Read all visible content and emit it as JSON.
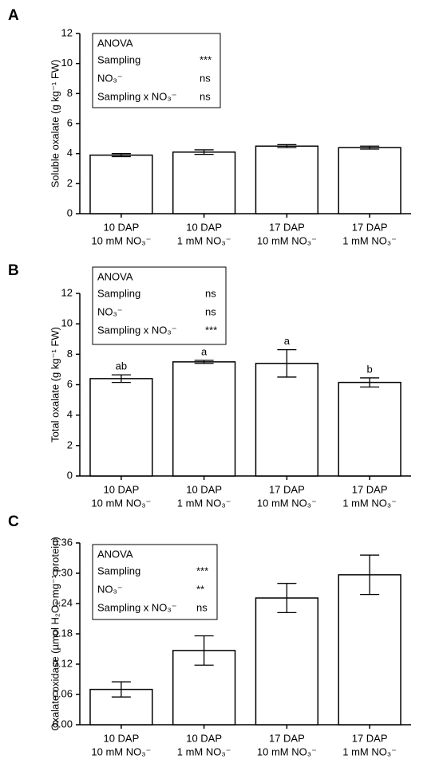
{
  "chart_data": [
    {
      "type": "bar",
      "panel_label": "A",
      "ylabel": "Soluble oxalate (g kg⁻¹ FW)",
      "anova": {
        "title": "ANOVA",
        "rows": [
          [
            "Sampling",
            "***"
          ],
          [
            "NO₃⁻",
            "ns"
          ],
          [
            "Sampling x NO₃⁻",
            "ns"
          ]
        ]
      },
      "categories": [
        [
          "10 DAP",
          "10 mM NO₃⁻"
        ],
        [
          "10 DAP",
          "1 mM NO₃⁻"
        ],
        [
          "17 DAP",
          "10 mM NO₃⁻"
        ],
        [
          "17 DAP",
          "1 mM NO₃⁻"
        ]
      ],
      "values": [
        3.9,
        4.1,
        4.5,
        4.4
      ],
      "errors": [
        0.1,
        0.15,
        0.1,
        0.1
      ],
      "color": "#ffffff",
      "ylim": [
        0,
        12
      ],
      "yticks": [
        0,
        2,
        4,
        6,
        8,
        10,
        12
      ]
    },
    {
      "type": "bar",
      "panel_label": "B",
      "ylabel": "Total oxalate (g kg⁻¹ FW)",
      "anova": {
        "title": "ANOVA",
        "rows": [
          [
            "Sampling",
            "ns"
          ],
          [
            "NO₃⁻",
            "ns"
          ],
          [
            "Sampling x NO₃⁻",
            "***"
          ]
        ]
      },
      "categories": [
        [
          "10 DAP",
          "10 mM NO₃⁻"
        ],
        [
          "10 DAP",
          "1 mM NO₃⁻"
        ],
        [
          "17 DAP",
          "10 mM NO₃⁻"
        ],
        [
          "17 DAP",
          "1 mM NO₃⁻"
        ]
      ],
      "values": [
        6.4,
        7.5,
        7.4,
        6.15
      ],
      "errors": [
        0.25,
        0.1,
        0.9,
        0.3
      ],
      "letters": [
        "ab",
        "a",
        "a",
        "b"
      ],
      "color": "#ffffff",
      "ylim": [
        0,
        12
      ],
      "yticks": [
        0,
        2,
        4,
        6,
        8,
        10,
        12
      ]
    },
    {
      "type": "bar",
      "panel_label": "C",
      "ylabel": "Oxalate oxidase (µmol H₂O₂ mg⁻¹ protein)",
      "anova": {
        "title": "ANOVA",
        "rows": [
          [
            "Sampling",
            "***"
          ],
          [
            "NO₃⁻",
            "**"
          ],
          [
            "Sampling x NO₃⁻",
            "ns"
          ]
        ]
      },
      "categories": [
        [
          "10 DAP",
          "10 mM NO₃⁻"
        ],
        [
          "10 DAP",
          "1 mM NO₃⁻"
        ],
        [
          "17 DAP",
          "10 mM NO₃⁻"
        ],
        [
          "17 DAP",
          "1 mM NO₃⁻"
        ]
      ],
      "values": [
        0.07,
        0.147,
        0.251,
        0.297
      ],
      "errors": [
        0.015,
        0.029,
        0.029,
        0.039
      ],
      "color": "#ffffff",
      "ylim": [
        0,
        0.36
      ],
      "yticks": [
        {
          "value": 0,
          "label": "0.00"
        },
        0.06,
        0.12,
        0.18,
        0.24,
        {
          "value": 0.3,
          "label": "0.30"
        },
        0.36
      ]
    }
  ]
}
